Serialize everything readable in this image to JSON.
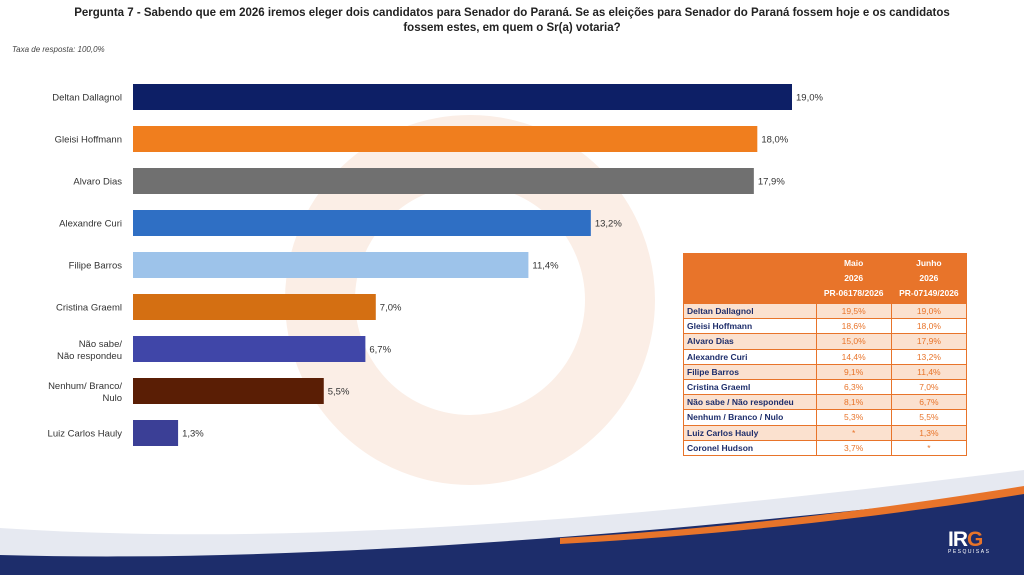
{
  "header": {
    "question_line1": "Pergunta 7 - Sabendo que em 2026 iremos eleger dois candidatos para Senador do Paraná. Se as eleições para Senador do Paraná fossem hoje e os candidatos",
    "question_line2": "fossem estes, em quem o Sr(a) votaria?",
    "response_rate": "Taxa de resposta: 100,0%"
  },
  "chart_data": {
    "type": "bar",
    "orientation": "horizontal",
    "categories": [
      "Deltan Dallagnol",
      "Gleisi Hoffmann",
      "Alvaro Dias",
      "Alexandre Curi",
      "Filipe Barros",
      "Cristina Graeml",
      "Não sabe/ Não respondeu",
      "Nenhum/ Branco/ Nulo",
      "Luiz Carlos Hauly"
    ],
    "values": [
      19.0,
      18.0,
      17.9,
      13.2,
      11.4,
      7.0,
      6.7,
      5.5,
      1.3
    ],
    "value_labels": [
      "19,0%",
      "18,0%",
      "17,9%",
      "13,2%",
      "11,4%",
      "7,0%",
      "6,7%",
      "5,5%",
      "1,3%"
    ],
    "colors": [
      "#0d1f66",
      "#f07e1e",
      "#707070",
      "#2f6fc4",
      "#9dc3ea",
      "#d46f12",
      "#4046a8",
      "#5a1e05",
      "#3b3f96"
    ],
    "xlim": [
      0,
      19.0
    ],
    "grid": false,
    "legend": "none"
  },
  "table": {
    "headers": [
      {
        "month": "Maio",
        "year": "2026",
        "code": "PR-06178/2026"
      },
      {
        "month": "Junho",
        "year": "2026",
        "code": "PR-07149/2026"
      }
    ],
    "rows": [
      {
        "name": "Deltan Dallagnol",
        "maio": "19,5%",
        "junho": "19,0%"
      },
      {
        "name": "Gleisi Hoffmann",
        "maio": "18,6%",
        "junho": "18,0%"
      },
      {
        "name": "Alvaro Dias",
        "maio": "15,0%",
        "junho": "17,9%"
      },
      {
        "name": "Alexandre Curi",
        "maio": "14,4%",
        "junho": "13,2%"
      },
      {
        "name": "Filipe Barros",
        "maio": "9,1%",
        "junho": "11,4%"
      },
      {
        "name": "Cristina Graeml",
        "maio": "6,3%",
        "junho": "7,0%"
      },
      {
        "name": "Não sabe / Não respondeu",
        "maio": "8,1%",
        "junho": "6,7%"
      },
      {
        "name": "Nenhum / Branco / Nulo",
        "maio": "5,3%",
        "junho": "5,5%"
      },
      {
        "name": "Luiz Carlos Hauly",
        "maio": "*",
        "junho": "1,3%"
      },
      {
        "name": "Coronel Hudson",
        "maio": "3,7%",
        "junho": "*"
      }
    ]
  },
  "logo": {
    "main": "IRG",
    "sub": "PESQUISAS"
  },
  "colors": {
    "accent": "#e8742a",
    "navy": "#1d2d6b"
  }
}
